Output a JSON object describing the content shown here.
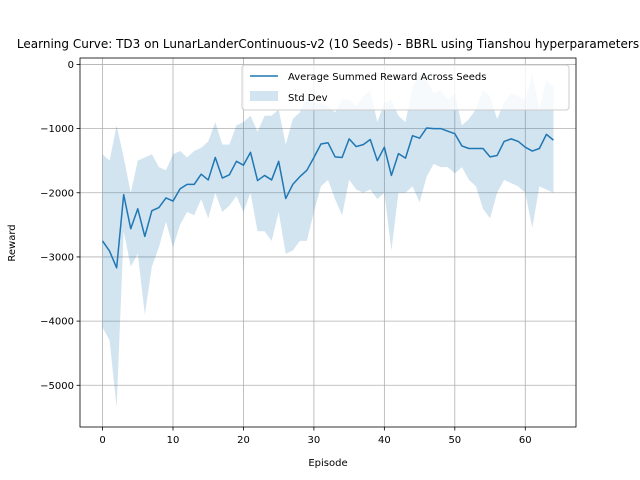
{
  "chart_data": {
    "type": "line",
    "title": "Learning Curve: TD3 on LunarLanderContinuous-v2 (10 Seeds) - BBRL using Tianshou hyperparameters",
    "xlabel": "Episode",
    "ylabel": "Reward",
    "xlim": [
      -3.2,
      67.2
    ],
    "ylim": [
      -5650,
      100
    ],
    "xticks": [
      0,
      10,
      20,
      30,
      40,
      50,
      60
    ],
    "yticks": [
      0,
      -1000,
      -2000,
      -3000,
      -4000,
      -5000
    ],
    "grid": true,
    "legend_position": "upper right",
    "colors": {
      "mean_line": "#1f77b4",
      "std_fill": "#1f77b4"
    },
    "series": [
      {
        "name": "Average Summed Reward Across Seeds",
        "kind": "line",
        "x": [
          0,
          1,
          2,
          3,
          4,
          5,
          6,
          7,
          8,
          9,
          10,
          11,
          12,
          13,
          14,
          15,
          16,
          17,
          18,
          19,
          20,
          21,
          22,
          23,
          24,
          25,
          26,
          27,
          28,
          29,
          30,
          31,
          32,
          33,
          34,
          35,
          36,
          37,
          38,
          39,
          40,
          41,
          42,
          43,
          44,
          45,
          46,
          47,
          48,
          49,
          50,
          51,
          52,
          53,
          54,
          55,
          56,
          57,
          58,
          59,
          60,
          61,
          62,
          63,
          64
        ],
        "values": [
          -2750,
          -2910,
          -3170,
          -2030,
          -2560,
          -2250,
          -2680,
          -2280,
          -2230,
          -2080,
          -2130,
          -1940,
          -1870,
          -1870,
          -1710,
          -1800,
          -1450,
          -1770,
          -1720,
          -1510,
          -1570,
          -1370,
          -1810,
          -1730,
          -1800,
          -1510,
          -2090,
          -1870,
          -1750,
          -1650,
          -1450,
          -1240,
          -1220,
          -1440,
          -1450,
          -1160,
          -1280,
          -1250,
          -1170,
          -1500,
          -1290,
          -1730,
          -1390,
          -1460,
          -1110,
          -1150,
          -990,
          -1000,
          -1000,
          -1040,
          -1080,
          -1270,
          -1310,
          -1310,
          -1310,
          -1440,
          -1420,
          -1200,
          -1160,
          -1200,
          -1290,
          -1350,
          -1310,
          -1090,
          -1180
        ]
      },
      {
        "name": "Std Dev",
        "kind": "band",
        "x": [
          0,
          1,
          2,
          3,
          4,
          5,
          6,
          7,
          8,
          9,
          10,
          11,
          12,
          13,
          14,
          15,
          16,
          17,
          18,
          19,
          20,
          21,
          22,
          23,
          24,
          25,
          26,
          27,
          28,
          29,
          30,
          31,
          32,
          33,
          34,
          35,
          36,
          37,
          38,
          39,
          40,
          41,
          42,
          43,
          44,
          45,
          46,
          47,
          48,
          49,
          50,
          51,
          52,
          53,
          54,
          55,
          56,
          57,
          58,
          59,
          60,
          61,
          62,
          63,
          64
        ],
        "lower": [
          -4100,
          -4300,
          -5350,
          -2600,
          -3150,
          -2950,
          -3900,
          -3150,
          -2850,
          -2450,
          -2850,
          -2500,
          -2300,
          -2350,
          -2100,
          -2400,
          -2000,
          -2300,
          -2200,
          -2050,
          -2300,
          -2000,
          -2600,
          -2600,
          -2750,
          -2300,
          -2950,
          -2900,
          -2750,
          -2750,
          -2300,
          -1900,
          -1800,
          -2100,
          -2350,
          -1800,
          -1950,
          -2000,
          -1950,
          -2100,
          -2000,
          -2900,
          -2000,
          -2000,
          -1900,
          -2150,
          -1750,
          -1550,
          -1600,
          -1600,
          -1700,
          -1600,
          -1800,
          -1900,
          -2250,
          -2400,
          -2000,
          -1800,
          -1850,
          -1900,
          -2000,
          -2550,
          -1900,
          -1950,
          -2000
        ],
        "upper": [
          -1400,
          -1500,
          -950,
          -1450,
          -2000,
          -1500,
          -1450,
          -1400,
          -1600,
          -1650,
          -1400,
          -1350,
          -1450,
          -1350,
          -1300,
          -1200,
          -900,
          -1250,
          -1250,
          -950,
          -900,
          -800,
          -1050,
          -800,
          -800,
          -700,
          -1250,
          -850,
          -750,
          -500,
          -600,
          -600,
          -650,
          -750,
          -550,
          -550,
          -650,
          -500,
          -400,
          -900,
          -600,
          -550,
          -800,
          -900,
          -350,
          -150,
          -250,
          -450,
          -400,
          -550,
          -450,
          -950,
          -850,
          -700,
          -400,
          -500,
          -850,
          -600,
          -450,
          -500,
          -550,
          -150,
          -700,
          -250,
          -350
        ]
      }
    ]
  }
}
